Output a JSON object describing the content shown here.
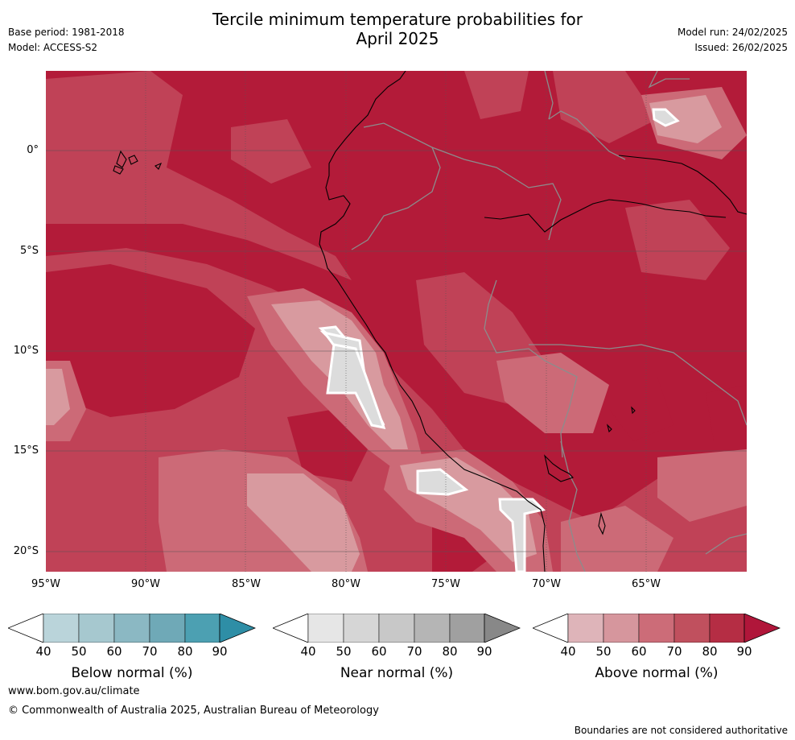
{
  "header": {
    "base_period": "Base period: 1981-2018",
    "model": "Model: ACCESS-S2",
    "model_run": "Model run: 24/02/2025",
    "issued": "Issued: 26/02/2025",
    "title_line1": "Tercile minimum temperature probabilities for",
    "title_line2": "April 2025"
  },
  "map": {
    "lat_labels": [
      "0°",
      "5°S",
      "10°S",
      "15°S",
      "20°S"
    ],
    "lon_labels": [
      "95°W",
      "90°W",
      "85°W",
      "80°W",
      "75°W",
      "70°W",
      "65°W"
    ],
    "lon_range": [
      -95,
      -60
    ],
    "lat_range": [
      -21,
      4
    ],
    "dominant_category": "Above normal",
    "colors": {
      "above_90": "#b31b39",
      "above_80": "#c04257",
      "above_70": "#cc6a77",
      "above_60": "#d89a9f",
      "near_50": "#dcdcdc",
      "coast": "#000000",
      "borders": "#8c8c8c"
    }
  },
  "colorbars": [
    {
      "label": "Below normal (%)",
      "ticks": [
        "40",
        "50",
        "60",
        "70",
        "80",
        "90"
      ],
      "colors": [
        "#bad4da",
        "#a6c8cf",
        "#8bb8c3",
        "#6fa9b7",
        "#4ca0b2",
        "#2e8ea6"
      ]
    },
    {
      "label": "Near normal (%)",
      "ticks": [
        "40",
        "50",
        "60",
        "70",
        "80",
        "90"
      ],
      "colors": [
        "#e6e6e6",
        "#d6d6d6",
        "#c8c8c8",
        "#b5b5b5",
        "#a0a0a0",
        "#888888"
      ]
    },
    {
      "label": "Above normal (%)",
      "ticks": [
        "40",
        "50",
        "60",
        "70",
        "80",
        "90"
      ],
      "colors": [
        "#deb4b9",
        "#d6969d",
        "#cc6c78",
        "#c0505e",
        "#b52d44",
        "#b0163a"
      ]
    }
  ],
  "footer": {
    "website": "www.bom.gov.au/climate",
    "copyright": "© Commonwealth of Australia 2025, Australian Bureau of Meteorology",
    "disclaimer": "Boundaries are not considered authoritative"
  }
}
